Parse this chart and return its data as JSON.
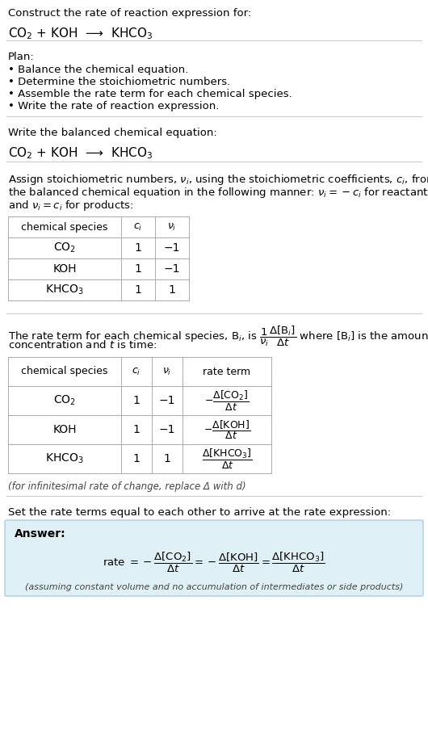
{
  "bg_color": "#ffffff",
  "title_line1": "Construct the rate of reaction expression for:",
  "title_line2": "CO$_2$ + KOH  ⟶  KHCO$_3$",
  "plan_header": "Plan:",
  "plan_items": [
    "• Balance the chemical equation.",
    "• Determine the stoichiometric numbers.",
    "• Assemble the rate term for each chemical species.",
    "• Write the rate of reaction expression."
  ],
  "balanced_header": "Write the balanced chemical equation:",
  "balanced_eq": "CO$_2$ + KOH  ⟶  KHCO$_3$",
  "stoich_intro_lines": [
    "Assign stoichiometric numbers, $\\nu_i$, using the stoichiometric coefficients, $c_i$, from",
    "the balanced chemical equation in the following manner: $\\nu_i = -c_i$ for reactants",
    "and $\\nu_i = c_i$ for products:"
  ],
  "table1_headers": [
    "chemical species",
    "$c_i$",
    "$\\nu_i$"
  ],
  "table1_rows": [
    [
      "CO$_2$",
      "1",
      "−1"
    ],
    [
      "KOH",
      "1",
      "−1"
    ],
    [
      "KHCO$_3$",
      "1",
      "1"
    ]
  ],
  "rate_intro_lines": [
    "The rate term for each chemical species, B$_i$, is $\\dfrac{1}{\\nu_i}\\dfrac{\\Delta[\\mathrm{B}_i]}{\\Delta t}$ where [B$_i$] is the amount",
    "concentration and $t$ is time:"
  ],
  "table2_headers": [
    "chemical species",
    "$c_i$",
    "$\\nu_i$",
    "rate term"
  ],
  "table2_rows": [
    [
      "CO$_2$",
      "1",
      "−1",
      "$-\\dfrac{\\Delta[\\mathrm{CO_2}]}{\\Delta t}$"
    ],
    [
      "KOH",
      "1",
      "−1",
      "$-\\dfrac{\\Delta[\\mathrm{KOH}]}{\\Delta t}$"
    ],
    [
      "KHCO$_3$",
      "1",
      "1",
      "$\\dfrac{\\Delta[\\mathrm{KHCO_3}]}{\\Delta t}$"
    ]
  ],
  "infinitesimal_note": "(for infinitesimal rate of change, replace Δ with d)",
  "set_equal_text": "Set the rate terms equal to each other to arrive at the rate expression:",
  "answer_label": "Answer:",
  "answer_box_color": "#dff0f7",
  "answer_box_edge": "#a8cfe0",
  "answer_rate": "rate $= -\\dfrac{\\Delta[\\mathrm{CO_2}]}{\\Delta t} = -\\dfrac{\\Delta[\\mathrm{KOH}]}{\\Delta t} = \\dfrac{\\Delta[\\mathrm{KHCO_3}]}{\\Delta t}$",
  "answer_note": "(assuming constant volume and no accumulation of intermediates or side products)"
}
